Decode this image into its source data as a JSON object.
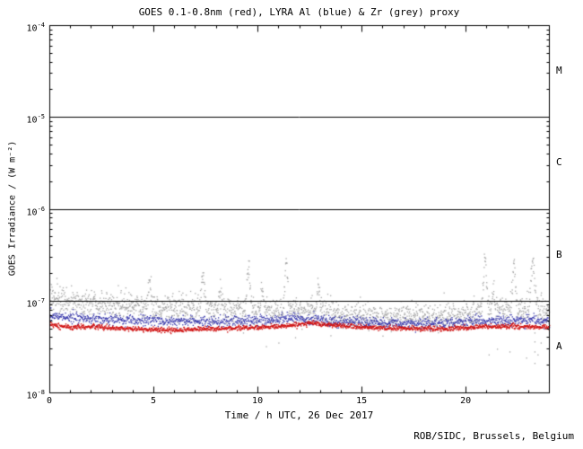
{
  "chart_data": {
    "type": "scatter",
    "title": "GOES 0.1-0.8nm (red), LYRA Al (blue) & Zr (grey) proxy",
    "xlabel": "Time / h UTC, 26 Dec 2017",
    "ylabel": "GOES Irradiance / (W m⁻²)",
    "credit": "ROB/SIDC, Brussels, Belgium",
    "xlim": [
      0,
      24
    ],
    "ylim_log10": [
      -8,
      -4
    ],
    "x_major_ticks": [
      0,
      5,
      10,
      15,
      20
    ],
    "y_ticks_log10": [
      -4,
      -5,
      -6,
      -7,
      -8
    ],
    "hlines_wm2": [
      1e-07,
      1e-06,
      1e-05
    ],
    "grid": false,
    "legend": "encoded in title colors",
    "flare_classes": [
      {
        "label": "M",
        "y_wm2": 3.16e-05
      },
      {
        "label": "C",
        "y_wm2": 3.16e-06
      },
      {
        "label": "B",
        "y_wm2": 3.16e-07
      },
      {
        "label": "A",
        "y_wm2": 3.16e-08
      }
    ],
    "series": [
      {
        "name": "LYRA Zr proxy",
        "color": "#a8a8a8",
        "dot": 1.3,
        "points_per_hour": 80,
        "sigma_log10": 0.07,
        "baseline_x": [
          0,
          1,
          2,
          3,
          4,
          5,
          6,
          7,
          8,
          9,
          10,
          11,
          12,
          13,
          14,
          15,
          16,
          17,
          18,
          19,
          20,
          21,
          22,
          23,
          24
        ],
        "baseline_y_wm2": [
          1.05e-07,
          1e-07,
          9.5e-08,
          9e-08,
          8.8e-08,
          8.6e-08,
          8.4e-08,
          8.3e-08,
          8.2e-08,
          8e-08,
          7.8e-08,
          7.6e-08,
          8e-08,
          7.8e-08,
          7.2e-08,
          7e-08,
          6.8e-08,
          6.8e-08,
          6.8e-08,
          7e-08,
          7.4e-08,
          8e-08,
          8.2e-08,
          8e-08,
          7.8e-08
        ],
        "spikes": [
          [
            4.8,
            1.6e-07,
            0.07
          ],
          [
            7.35,
            2e-07,
            0.07
          ],
          [
            8.2,
            1.3e-07,
            0.06
          ],
          [
            9.55,
            2.3e-07,
            0.07
          ],
          [
            10.2,
            1.4e-07,
            0.06
          ],
          [
            11.35,
            2.6e-07,
            0.06
          ],
          [
            12.9,
            1.4e-07,
            0.06
          ],
          [
            20.9,
            3e-07,
            0.07
          ],
          [
            21.3,
            1.5e-07,
            0.05
          ],
          [
            22.3,
            2.6e-07,
            0.07
          ],
          [
            23.2,
            2.6e-07,
            0.09
          ]
        ],
        "outliers": [
          [
            9.3,
            4.5e-08
          ],
          [
            10.4,
            3.2e-08
          ],
          [
            11.0,
            3.5e-08
          ],
          [
            11.8,
            4e-08
          ],
          [
            13.5,
            4.2e-08
          ],
          [
            21.1,
            2.6e-08
          ],
          [
            21.5,
            3e-08
          ],
          [
            22.1,
            2.8e-08
          ],
          [
            22.9,
            2.4e-08
          ],
          [
            23.3,
            2.1e-08
          ],
          [
            23.3,
            2.8e-08
          ],
          [
            23.3,
            3.6e-08
          ],
          [
            23.3,
            4.5e-08
          ],
          [
            23.45,
            2.6e-08
          ],
          [
            23.6,
            3.5e-08
          ]
        ]
      },
      {
        "name": "LYRA Al proxy",
        "color": "#3434aa",
        "dot": 1.3,
        "points_per_hour": 60,
        "sigma_log10": 0.03,
        "baseline_x": [
          0,
          1,
          2,
          3,
          4,
          5,
          6,
          7,
          8,
          9,
          10,
          11,
          12,
          13,
          14,
          15,
          16,
          17,
          18,
          19,
          20,
          21,
          22,
          23,
          24
        ],
        "baseline_y_wm2": [
          7e-08,
          6.6e-08,
          6.4e-08,
          6.3e-08,
          6.2e-08,
          6.1e-08,
          6e-08,
          6.1e-08,
          6e-08,
          6e-08,
          6.2e-08,
          6.3e-08,
          6.5e-08,
          6.3e-08,
          6e-08,
          5.9e-08,
          5.8e-08,
          5.8e-08,
          5.7e-08,
          5.8e-08,
          5.9e-08,
          6.1e-08,
          6.2e-08,
          6.2e-08,
          6.1e-08
        ],
        "spikes": [],
        "outliers": []
      },
      {
        "name": "GOES 0.1-0.8nm",
        "color": "#d01010",
        "dot": 1.4,
        "points_per_hour": 60,
        "sigma_log10": 0.013,
        "baseline_x": [
          0,
          1,
          2,
          3,
          4,
          5,
          6,
          7,
          8,
          9,
          10,
          11,
          12,
          12.5,
          13,
          14,
          15,
          16,
          17,
          18,
          19,
          20,
          21,
          22,
          23,
          24
        ],
        "baseline_y_wm2": [
          5.5e-08,
          5.2e-08,
          5.3e-08,
          5.1e-08,
          5e-08,
          4.9e-08,
          4.8e-08,
          5e-08,
          5e-08,
          5.05e-08,
          5.2e-08,
          5.3e-08,
          5.6e-08,
          5.8e-08,
          5.6e-08,
          5.4e-08,
          5.2e-08,
          5.1e-08,
          5e-08,
          5e-08,
          5e-08,
          5.1e-08,
          5.3e-08,
          5.3e-08,
          5.3e-08,
          5.2e-08
        ],
        "spikes": [],
        "outliers": []
      }
    ]
  }
}
